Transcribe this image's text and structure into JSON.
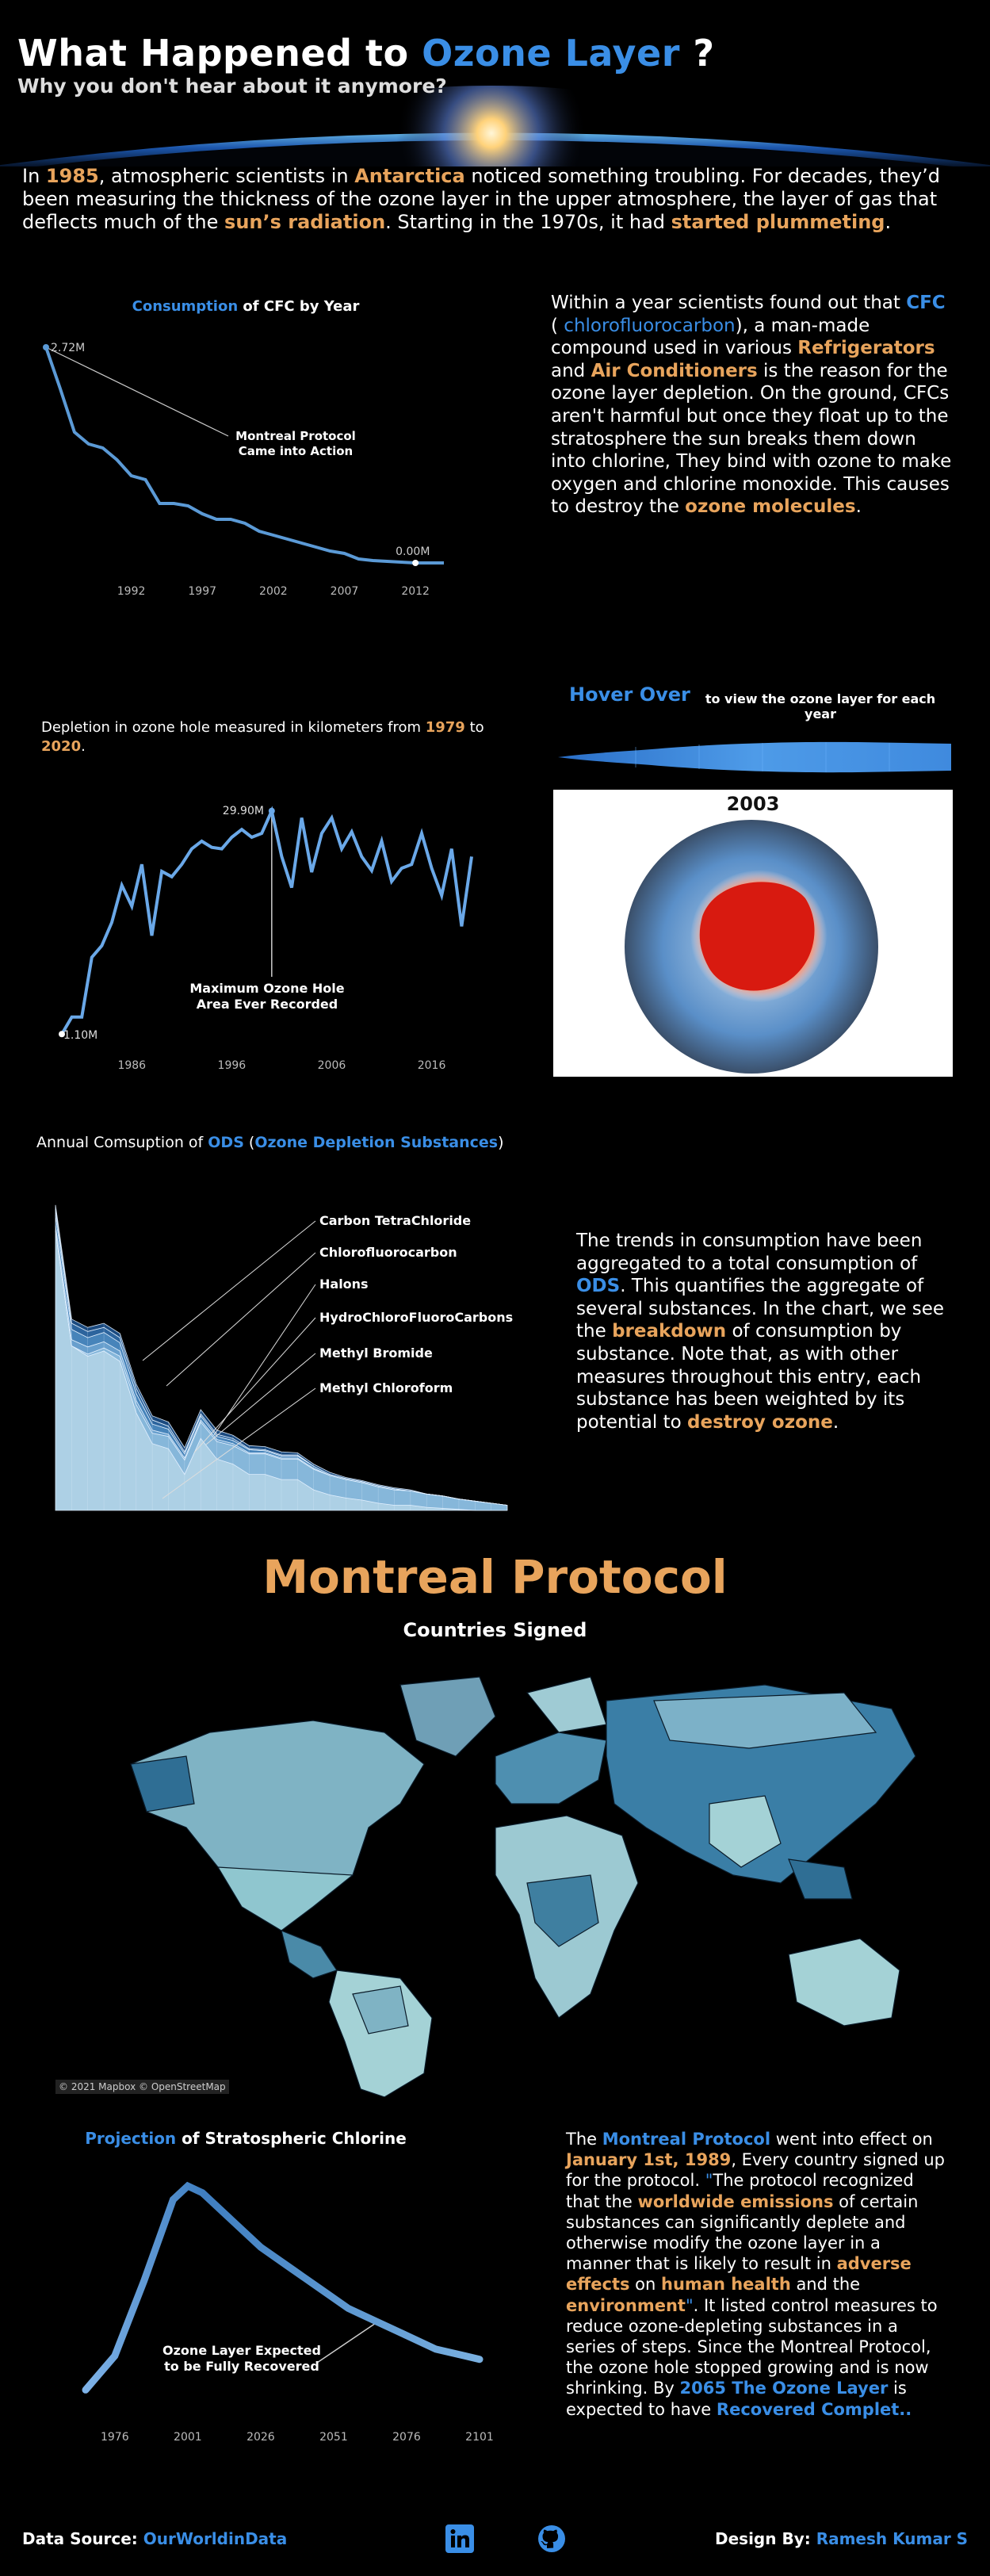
{
  "header": {
    "title_prefix": "What Happened to ",
    "title_highlight": "Ozone Layer",
    "title_suffix": " ?",
    "subtitle": "Why you don't hear about it anymore?"
  },
  "intro": {
    "t1": "In ",
    "year": "1985",
    "t2": ", atmospheric scientists in ",
    "place": "Antarctica",
    "t3": " noticed something troubling. For decades, they’d been measuring the thickness of the ozone layer in the upper atmosphere, the layer of gas that deflects much of the ",
    "radiation": "sun’s radiation",
    "t4": ". Starting in the 1970s, it had ",
    "plummet": "started plummeting",
    "t5": "."
  },
  "cfc": {
    "title_highlight": "Consumption",
    "title_rest": " of CFC by Year",
    "annotation_line1": "Montreal Protocol",
    "annotation_line2": "Came into Action",
    "start_label": "2.72M",
    "end_label": "0.00M",
    "chart_data": {
      "type": "line",
      "title": "Consumption of CFC by Year",
      "x": [
        1986,
        1987,
        1988,
        1989,
        1990,
        1991,
        1992,
        1993,
        1994,
        1995,
        1996,
        1997,
        1998,
        1999,
        2000,
        2001,
        2002,
        2003,
        2004,
        2005,
        2006,
        2007,
        2008,
        2009,
        2010,
        2011,
        2012,
        2013,
        2014
      ],
      "y": [
        2.72,
        2.2,
        1.65,
        1.5,
        1.45,
        1.3,
        1.1,
        1.05,
        0.75,
        0.75,
        0.72,
        0.62,
        0.55,
        0.55,
        0.5,
        0.4,
        0.35,
        0.3,
        0.25,
        0.2,
        0.15,
        0.12,
        0.05,
        0.03,
        0.02,
        0.01,
        0.0,
        0.0,
        0.0
      ],
      "xticks": [
        "1992",
        "1997",
        "2002",
        "2007",
        "2012"
      ],
      "ylim": [
        0,
        2.8
      ]
    }
  },
  "cfc_text": {
    "t1": "Within a year scientists found out that ",
    "cfc": "CFC",
    "t2": " ( ",
    "full": "chlorofluorocarbon",
    "t3": "), a man-made compound used in various ",
    "fridge": "Refrigerators",
    "t4": " and ",
    "ac": "Air Conditioners",
    "t5": " is the reason for the ozone layer depletion. On the ground, CFCs aren't harmful but once they float up to the stratosphere the sun breaks them down into chlorine, They bind with ozone to make oxygen and chlorine monoxide. This causes to destroy the ",
    "molecules": "ozone molecules",
    "t6": "."
  },
  "hole": {
    "caption_t1": "Depletion in ozone hole measured in kilometers from ",
    "from": "1979",
    "caption_t2": " to ",
    "to": "2020",
    "caption_t3": ".",
    "max_label": "29.90M",
    "min_label": "1.10M",
    "annotation_line1": "Maximum Ozone Hole",
    "annotation_line2": "Area Ever Recorded",
    "chart_data": {
      "type": "line",
      "title": "Depletion in ozone hole",
      "x": [
        1979,
        1980,
        1981,
        1982,
        1983,
        1984,
        1985,
        1986,
        1987,
        1988,
        1989,
        1990,
        1991,
        1992,
        1993,
        1994,
        1995,
        1996,
        1997,
        1998,
        1999,
        2000,
        2001,
        2002,
        2003,
        2004,
        2005,
        2006,
        2007,
        2008,
        2009,
        2010,
        2011,
        2012,
        2013,
        2014,
        2015,
        2016,
        2017,
        2018,
        2019,
        2020
      ],
      "y": [
        1.1,
        3.3,
        3.3,
        11.0,
        12.5,
        15.5,
        20.3,
        17.6,
        23.0,
        13.8,
        22.1,
        21.4,
        23.0,
        25.0,
        26.0,
        25.2,
        25.0,
        26.5,
        27.5,
        26.5,
        27.0,
        29.9,
        24.0,
        20.0,
        29.0,
        22.0,
        27.0,
        29.0,
        25.0,
        27.2,
        24.0,
        22.2,
        26.0,
        20.8,
        22.5,
        23.0,
        27.0,
        22.5,
        19.0,
        25.0,
        15.0,
        24.0
      ],
      "xticks": [
        "1986",
        "1996",
        "2006",
        "2016"
      ],
      "ylim": [
        0,
        31
      ]
    }
  },
  "hover": {
    "title": "Hover Over",
    "subtitle": "to view the ozone layer for each year",
    "year": "2003"
  },
  "ods": {
    "title_t1": "Annual Comsuption of ",
    "ods": "ODS",
    "title_t2": " (",
    "full": "Ozone Depletion Substances",
    "title_t3": ")",
    "legend": [
      "Carbon TetraChloride",
      "Chlorofluorocarbon",
      "Halons",
      "HydroChloroFluoroCarbons",
      "Methyl Bromide",
      "Methyl Chloroform"
    ],
    "chart_data": {
      "type": "area",
      "title": "Annual Comsuption of ODS (Ozone Depletion Substances)",
      "x": [
        1986,
        1987,
        1988,
        1989,
        1990,
        1991,
        1992,
        1993,
        1994,
        1995,
        1996,
        1997,
        1998,
        1999,
        2000,
        2001,
        2002,
        2003,
        2004,
        2005,
        2006,
        2007,
        2008,
        2009,
        2010,
        2011,
        2012,
        2013,
        2014
      ],
      "series": [
        {
          "name": "Chlorofluorocarbon",
          "values": [
            2.72,
            1.6,
            1.5,
            1.55,
            1.45,
            0.95,
            0.65,
            0.6,
            0.35,
            0.7,
            0.5,
            0.45,
            0.35,
            0.35,
            0.3,
            0.3,
            0.2,
            0.15,
            0.12,
            0.1,
            0.07,
            0.05,
            0.05,
            0.03,
            0.02,
            0.01,
            0.0,
            0.0,
            0.0
          ]
        },
        {
          "name": "HydroChloroFluoroCarbons",
          "values": [
            0.0,
            0.0,
            0.02,
            0.03,
            0.05,
            0.08,
            0.1,
            0.12,
            0.14,
            0.16,
            0.17,
            0.18,
            0.2,
            0.2,
            0.2,
            0.2,
            0.2,
            0.19,
            0.18,
            0.17,
            0.16,
            0.15,
            0.14,
            0.13,
            0.12,
            0.1,
            0.09,
            0.07,
            0.05
          ]
        },
        {
          "name": "Halons",
          "values": [
            0.05,
            0.06,
            0.07,
            0.06,
            0.05,
            0.04,
            0.03,
            0.02,
            0.02,
            0.02,
            0.02,
            0.02,
            0.01,
            0.01,
            0.01,
            0.01,
            0.01,
            0.0,
            0.0,
            0.0,
            0.0,
            0.0,
            0.0,
            0.0,
            0.0,
            0.0,
            0.0,
            0.0,
            0.0
          ]
        },
        {
          "name": "Carbon TetraChloride",
          "values": [
            0.1,
            0.1,
            0.09,
            0.09,
            0.08,
            0.07,
            0.06,
            0.05,
            0.04,
            0.04,
            0.03,
            0.03,
            0.03,
            0.02,
            0.02,
            0.02,
            0.02,
            0.01,
            0.01,
            0.01,
            0.01,
            0.01,
            0.0,
            0.0,
            0.0,
            0.0,
            0.0,
            0.0,
            0.0
          ]
        },
        {
          "name": "Methyl Chloroform",
          "values": [
            0.06,
            0.06,
            0.06,
            0.05,
            0.05,
            0.05,
            0.04,
            0.03,
            0.02,
            0.02,
            0.02,
            0.02,
            0.01,
            0.01,
            0.01,
            0.01,
            0.0,
            0.0,
            0.0,
            0.0,
            0.0,
            0.0,
            0.0,
            0.0,
            0.0,
            0.0,
            0.0,
            0.0,
            0.0
          ]
        },
        {
          "name": "Methyl Bromide",
          "values": [
            0.04,
            0.04,
            0.04,
            0.04,
            0.04,
            0.04,
            0.04,
            0.04,
            0.04,
            0.04,
            0.04,
            0.03,
            0.03,
            0.03,
            0.03,
            0.02,
            0.02,
            0.02,
            0.01,
            0.01,
            0.01,
            0.01,
            0.01,
            0.0,
            0.0,
            0.0,
            0.0,
            0.0,
            0.0
          ]
        }
      ]
    }
  },
  "ods_text": {
    "t1": "The trends in consumption have been aggregated to a total consumption of ",
    "ods": "ODS",
    "t2": ". This quantifies the aggregate of several substances. In the chart, we see the ",
    "breakdown": "breakdown",
    "t3": " of consumption by substance. Note that, as with other measures throughout this entry, each substance has been weighted by its potential to ",
    "destroy": "destroy ozone",
    "t4": "."
  },
  "montreal": {
    "title": "Montreal Protocol",
    "map_title": "Countries Signed",
    "map_credit": "© 2021 Mapbox © OpenStreetMap"
  },
  "chlorine": {
    "title_highlight": "Projection",
    "title_rest": " of Stratospheric Chlorine",
    "annotation_line1": "Ozone Layer Expected",
    "annotation_line2": "to be Fully Recovered",
    "chart_data": {
      "type": "line",
      "title": "Projection of Stratospheric Chlorine",
      "x": [
        1966,
        1976,
        1986,
        1996,
        2001,
        2006,
        2016,
        2026,
        2036,
        2046,
        2056,
        2066,
        2076,
        2086,
        2096,
        2101
      ],
      "y": [
        0.8,
        1.3,
        2.4,
        3.6,
        3.8,
        3.7,
        3.3,
        2.9,
        2.6,
        2.3,
        2.0,
        1.8,
        1.6,
        1.4,
        1.3,
        1.25
      ],
      "xticks": [
        "1976",
        "2001",
        "2026",
        "2051",
        "2076",
        "2101"
      ],
      "ylim": [
        0.5,
        4.0
      ]
    }
  },
  "protocol_text": {
    "t1": "The ",
    "mp": "Montreal Protocol",
    "t2": " went into effect on ",
    "date": "January 1st, 1989",
    "t3": ", Every country signed up for the protocol. ",
    "q1": "\"",
    "t4": "The protocol recognized that the ",
    "emissions": "worldwide emissions",
    "t5": " of certain substances can significantly deplete and otherwise modify the ozone layer in a manner that is likely to result in ",
    "adverse": "adverse effects",
    "t6": " on ",
    "health": "human health",
    "t7": " and the ",
    "env": "environment",
    "q2": "\"",
    "t8": ". It listed control measures to reduce ozone-depleting substances in a series of steps. Since the Montreal Protocol, the ozone hole stopped growing and is now shrinking. By ",
    "y2065": "2065 The Ozone Layer",
    "t9": " is expected to have ",
    "recovered": "Recovered Complet.."
  },
  "footer": {
    "source_label": "Data Source: ",
    "source": "OurWorldinData",
    "design_label": "Design By: ",
    "designer": "Ramesh Kumar S",
    "icons": [
      "linkedin-icon",
      "github-icon"
    ]
  }
}
